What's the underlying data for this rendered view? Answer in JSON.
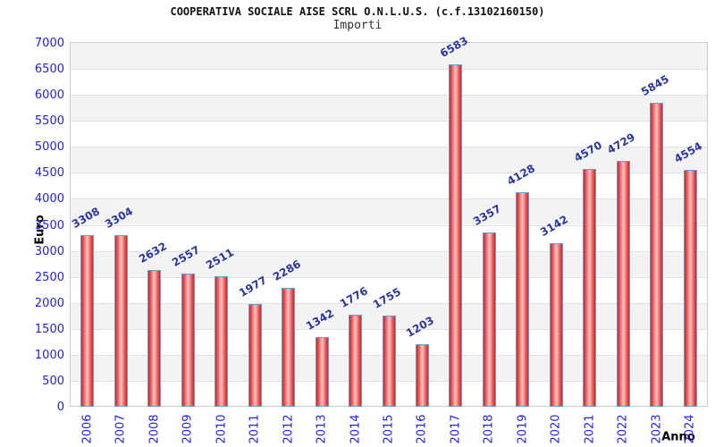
{
  "chart_data": {
    "type": "bar",
    "title": "COOPERATIVA SOCIALE AISE SCRL O.N.L.U.S. (c.f.13102160150)",
    "subtitle": "Importi",
    "xlabel": "Anno",
    "ylabel": "Euro",
    "categories": [
      "2006",
      "2007",
      "2008",
      "2009",
      "2010",
      "2011",
      "2012",
      "2013",
      "2014",
      "2015",
      "2016",
      "2017",
      "2018",
      "2019",
      "2020",
      "2021",
      "2022",
      "2023",
      "2024"
    ],
    "values": [
      3308,
      3304,
      2632,
      2557,
      2511,
      1977,
      2286,
      1342,
      1776,
      1755,
      1203,
      6583,
      3357,
      4128,
      3142,
      4570,
      4729,
      5845,
      4554
    ],
    "ylim": [
      0,
      7000
    ],
    "ytick_step": 500,
    "grid": "horizontal-bands",
    "legend": "none",
    "colors": {
      "bar_edge": "#d42222",
      "bar_mid": "#ea6060",
      "bar_center": "#f8bcbc",
      "bar_border": "#64a0d8",
      "tick_label": "#2222dd",
      "value_label": "#2a35a0",
      "band_gray": "#f3f3f3",
      "gridline": "#e2e2e2",
      "plot_border": "#cccccc",
      "axis_title": "#333333",
      "title": "#111111",
      "subtitle": "#333333"
    }
  }
}
